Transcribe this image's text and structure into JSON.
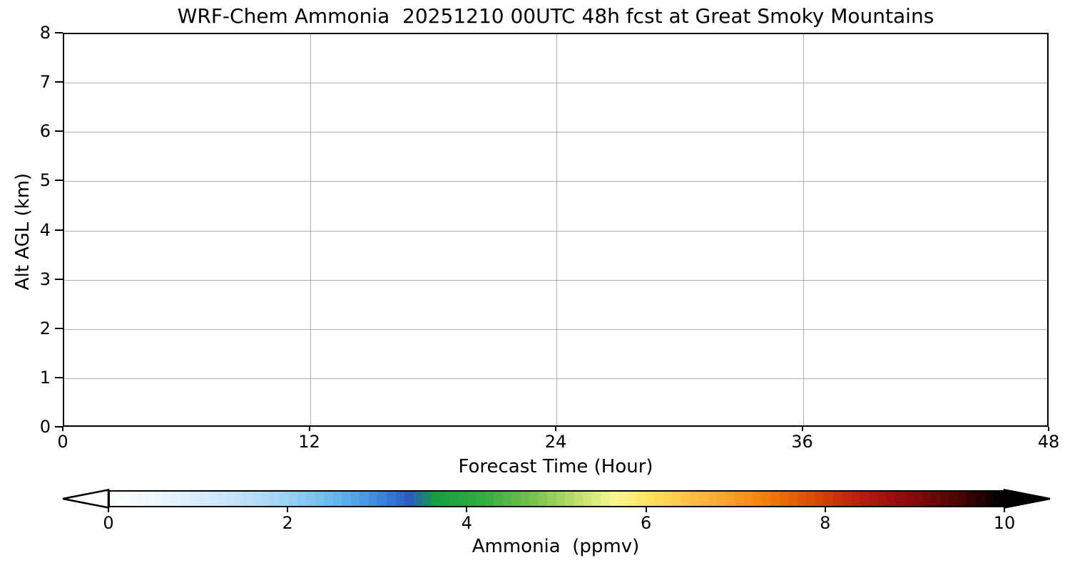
{
  "title": "WRF-Chem Ammonia  20251210 00UTC 48h fcst at Great Smoky Mountains",
  "chart_data": {
    "type": "heatmap",
    "title": "WRF-Chem Ammonia  20251210 00UTC 48h fcst at Great Smoky Mountains",
    "xlabel": "Forecast Time (Hour)",
    "ylabel": "Alt AGL (km)",
    "xlim": [
      0,
      48
    ],
    "ylim": [
      0,
      8
    ],
    "xticks": [
      0,
      12,
      24,
      36,
      48
    ],
    "yticks": [
      0,
      1,
      2,
      3,
      4,
      5,
      6,
      7,
      8
    ],
    "grid": true,
    "grid_color": "#b0b0b0",
    "plot_content": "empty",
    "values": [],
    "colorbar": {
      "label": "Ammonia  (ppmv)",
      "min": 0,
      "max": 10,
      "ticks": [
        0,
        2,
        4,
        6,
        8,
        10
      ],
      "orientation": "horizontal",
      "extend": "both",
      "under_color": "#ffffff",
      "over_color": "#000000",
      "n_segments": 100,
      "anchors": [
        [
          0.0,
          "#ffffff"
        ],
        [
          0.06,
          "#eaf5fd"
        ],
        [
          0.12,
          "#cfe8fa"
        ],
        [
          0.18,
          "#abd9f6"
        ],
        [
          0.23,
          "#7cc4f0"
        ],
        [
          0.27,
          "#55a9e8"
        ],
        [
          0.3,
          "#3c8adc"
        ],
        [
          0.32,
          "#306fd2"
        ],
        [
          0.335,
          "#2b5ac1"
        ],
        [
          0.35,
          "#1f7e85"
        ],
        [
          0.365,
          "#13a03f"
        ],
        [
          0.42,
          "#33ad40"
        ],
        [
          0.47,
          "#72c04c"
        ],
        [
          0.51,
          "#abd660"
        ],
        [
          0.545,
          "#dcec7c"
        ],
        [
          0.565,
          "#f6f78f"
        ],
        [
          0.585,
          "#fdef76"
        ],
        [
          0.615,
          "#fdda57"
        ],
        [
          0.65,
          "#fdc047"
        ],
        [
          0.69,
          "#faa32e"
        ],
        [
          0.725,
          "#f4860f"
        ],
        [
          0.755,
          "#ea6a00"
        ],
        [
          0.785,
          "#dd4e01"
        ],
        [
          0.815,
          "#cc3008"
        ],
        [
          0.845,
          "#b81a0e"
        ],
        [
          0.875,
          "#9e0e0f"
        ],
        [
          0.91,
          "#7c090a"
        ],
        [
          0.945,
          "#520505"
        ],
        [
          0.975,
          "#240202"
        ],
        [
          1.0,
          "#000000"
        ]
      ]
    }
  }
}
